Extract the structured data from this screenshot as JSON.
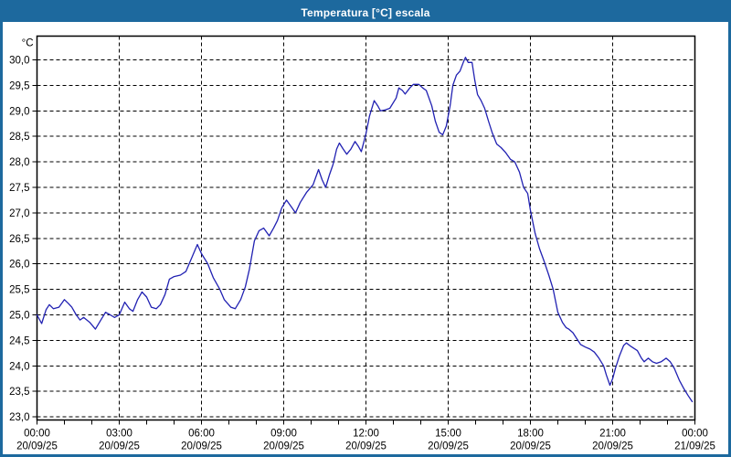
{
  "window": {
    "title": "Temperatura [°C] escala",
    "titlebar_color": "#1d699e",
    "border_color": "#1d699e",
    "background_color": "#ffffff"
  },
  "chart_data": {
    "type": "line",
    "title": "Temperatura [°C] escala",
    "unit_label": "°C",
    "line_color": "#2121b2",
    "grid_color": "#000000",
    "axis_color": "#000000",
    "grid_style": "dashed",
    "legend": "none",
    "x_range_hours": [
      0,
      24
    ],
    "x_major_every_h": 3,
    "x_minor_every_h": 1,
    "ylim": [
      23.0,
      30.5
    ],
    "y_tick_step": 0.5,
    "y_tick_labels": [
      "23,0",
      "23,5",
      "24,0",
      "24,5",
      "25,0",
      "25,5",
      "26,0",
      "26,5",
      "27,0",
      "27,5",
      "28,0",
      "28,5",
      "29,0",
      "29,5",
      "30,0"
    ],
    "x_tick_labels": [
      {
        "time": "00:00",
        "date": "20/09/25"
      },
      {
        "time": "03:00",
        "date": "20/09/25"
      },
      {
        "time": "06:00",
        "date": "20/09/25"
      },
      {
        "time": "09:00",
        "date": "20/09/25"
      },
      {
        "time": "12:00",
        "date": "20/09/25"
      },
      {
        "time": "15:00",
        "date": "20/09/25"
      },
      {
        "time": "18:00",
        "date": "20/09/25"
      },
      {
        "time": "21:00",
        "date": "20/09/25"
      },
      {
        "time": "00:00",
        "date": "21/09/25"
      }
    ],
    "series": [
      {
        "name": "Temperatura",
        "points": [
          [
            0.0,
            25.0
          ],
          [
            0.08,
            24.92
          ],
          [
            0.17,
            24.83
          ],
          [
            0.33,
            25.1
          ],
          [
            0.45,
            25.2
          ],
          [
            0.6,
            25.12
          ],
          [
            0.8,
            25.15
          ],
          [
            1.0,
            25.3
          ],
          [
            1.15,
            25.22
          ],
          [
            1.27,
            25.15
          ],
          [
            1.43,
            25.0
          ],
          [
            1.57,
            24.9
          ],
          [
            1.7,
            24.95
          ],
          [
            1.93,
            24.85
          ],
          [
            2.13,
            24.72
          ],
          [
            2.33,
            24.9
          ],
          [
            2.5,
            25.05
          ],
          [
            2.67,
            25.0
          ],
          [
            2.83,
            24.95
          ],
          [
            3.0,
            25.0
          ],
          [
            3.2,
            25.25
          ],
          [
            3.37,
            25.12
          ],
          [
            3.5,
            25.07
          ],
          [
            3.67,
            25.3
          ],
          [
            3.83,
            25.45
          ],
          [
            4.0,
            25.35
          ],
          [
            4.17,
            25.15
          ],
          [
            4.35,
            25.12
          ],
          [
            4.5,
            25.2
          ],
          [
            4.67,
            25.4
          ],
          [
            4.83,
            25.7
          ],
          [
            5.0,
            25.75
          ],
          [
            5.23,
            25.78
          ],
          [
            5.43,
            25.85
          ],
          [
            5.67,
            26.15
          ],
          [
            5.85,
            26.38
          ],
          [
            6.0,
            26.2
          ],
          [
            6.23,
            26.0
          ],
          [
            6.43,
            25.73
          ],
          [
            6.67,
            25.5
          ],
          [
            6.83,
            25.3
          ],
          [
            7.07,
            25.15
          ],
          [
            7.23,
            25.12
          ],
          [
            7.43,
            25.3
          ],
          [
            7.6,
            25.55
          ],
          [
            7.75,
            25.9
          ],
          [
            7.93,
            26.45
          ],
          [
            8.1,
            26.65
          ],
          [
            8.27,
            26.7
          ],
          [
            8.47,
            26.55
          ],
          [
            8.63,
            26.7
          ],
          [
            8.77,
            26.85
          ],
          [
            8.93,
            27.1
          ],
          [
            9.1,
            27.25
          ],
          [
            9.3,
            27.1
          ],
          [
            9.43,
            27.0
          ],
          [
            9.6,
            27.2
          ],
          [
            9.83,
            27.4
          ],
          [
            10.07,
            27.55
          ],
          [
            10.27,
            27.85
          ],
          [
            10.4,
            27.65
          ],
          [
            10.53,
            27.5
          ],
          [
            10.67,
            27.75
          ],
          [
            10.8,
            27.95
          ],
          [
            10.93,
            28.25
          ],
          [
            11.03,
            28.37
          ],
          [
            11.17,
            28.25
          ],
          [
            11.3,
            28.15
          ],
          [
            11.45,
            28.25
          ],
          [
            11.6,
            28.4
          ],
          [
            11.73,
            28.3
          ],
          [
            11.83,
            28.2
          ],
          [
            12.0,
            28.55
          ],
          [
            12.13,
            28.9
          ],
          [
            12.3,
            29.2
          ],
          [
            12.43,
            29.1
          ],
          [
            12.53,
            29.0
          ],
          [
            12.7,
            29.02
          ],
          [
            12.87,
            29.05
          ],
          [
            13.1,
            29.25
          ],
          [
            13.2,
            29.45
          ],
          [
            13.33,
            29.4
          ],
          [
            13.43,
            29.33
          ],
          [
            13.6,
            29.45
          ],
          [
            13.73,
            29.52
          ],
          [
            13.93,
            29.52
          ],
          [
            14.07,
            29.45
          ],
          [
            14.2,
            29.4
          ],
          [
            14.4,
            29.1
          ],
          [
            14.53,
            28.8
          ],
          [
            14.67,
            28.58
          ],
          [
            14.8,
            28.53
          ],
          [
            14.93,
            28.7
          ],
          [
            15.07,
            29.1
          ],
          [
            15.17,
            29.5
          ],
          [
            15.3,
            29.7
          ],
          [
            15.43,
            29.78
          ],
          [
            15.55,
            29.95
          ],
          [
            15.63,
            30.05
          ],
          [
            15.73,
            29.95
          ],
          [
            15.87,
            29.95
          ],
          [
            15.97,
            29.6
          ],
          [
            16.07,
            29.32
          ],
          [
            16.2,
            29.2
          ],
          [
            16.33,
            29.05
          ],
          [
            16.47,
            28.8
          ],
          [
            16.6,
            28.58
          ],
          [
            16.77,
            28.35
          ],
          [
            16.93,
            28.28
          ],
          [
            17.1,
            28.18
          ],
          [
            17.27,
            28.05
          ],
          [
            17.43,
            28.0
          ],
          [
            17.6,
            27.8
          ],
          [
            17.75,
            27.5
          ],
          [
            17.9,
            27.38
          ],
          [
            18.0,
            27.05
          ],
          [
            18.17,
            26.6
          ],
          [
            18.33,
            26.3
          ],
          [
            18.5,
            26.05
          ],
          [
            18.67,
            25.78
          ],
          [
            18.83,
            25.5
          ],
          [
            19.0,
            25.05
          ],
          [
            19.17,
            24.85
          ],
          [
            19.3,
            24.75
          ],
          [
            19.4,
            24.72
          ],
          [
            19.55,
            24.65
          ],
          [
            19.67,
            24.55
          ],
          [
            19.83,
            24.42
          ],
          [
            20.0,
            24.37
          ],
          [
            20.17,
            24.33
          ],
          [
            20.33,
            24.27
          ],
          [
            20.5,
            24.15
          ],
          [
            20.67,
            24.0
          ],
          [
            20.77,
            23.82
          ],
          [
            20.9,
            23.62
          ],
          [
            21.0,
            23.75
          ],
          [
            21.1,
            23.95
          ],
          [
            21.25,
            24.2
          ],
          [
            21.4,
            24.4
          ],
          [
            21.5,
            24.45
          ],
          [
            21.67,
            24.38
          ],
          [
            21.9,
            24.3
          ],
          [
            22.05,
            24.15
          ],
          [
            22.15,
            24.08
          ],
          [
            22.3,
            24.15
          ],
          [
            22.45,
            24.08
          ],
          [
            22.6,
            24.05
          ],
          [
            22.77,
            24.08
          ],
          [
            22.95,
            24.15
          ],
          [
            23.1,
            24.08
          ],
          [
            23.25,
            23.95
          ],
          [
            23.43,
            23.72
          ],
          [
            23.6,
            23.55
          ],
          [
            23.75,
            23.42
          ],
          [
            23.9,
            23.3
          ]
        ]
      }
    ]
  }
}
